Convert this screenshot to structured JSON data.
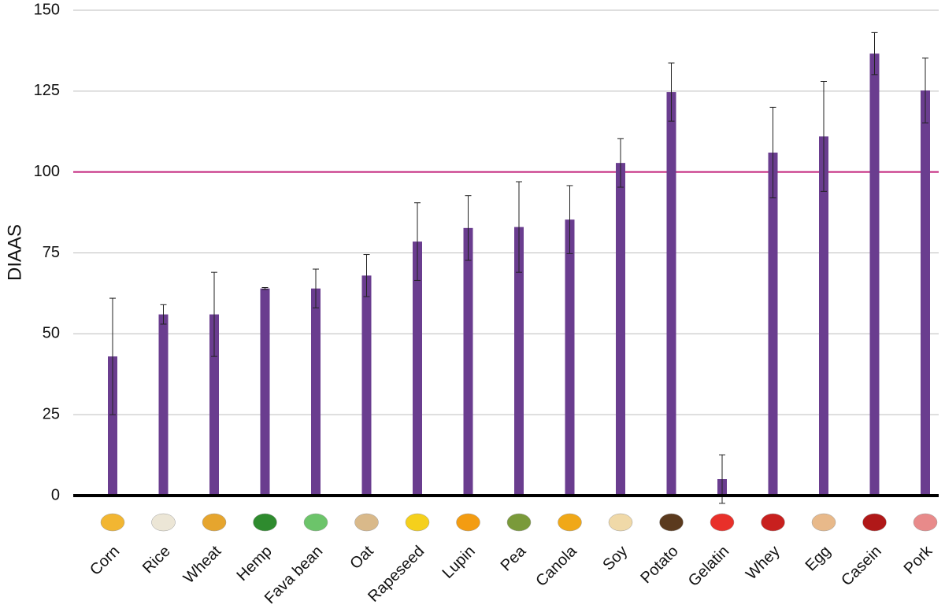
{
  "chart_data": {
    "type": "bar",
    "ylabel": "DIAAS",
    "categories": [
      "Corn",
      "Rice",
      "Wheat",
      "Hemp",
      "Fava bean",
      "Oat",
      "Rapeseed",
      "Lupin",
      "Pea",
      "Canola",
      "Soy",
      "Potato",
      "Gelatin",
      "Whey",
      "Egg",
      "Casein",
      "Pork"
    ],
    "values": [
      43,
      56,
      56,
      64,
      64,
      68,
      78.5,
      82.7,
      83,
      85.3,
      102.8,
      124.7,
      5.1,
      106,
      111,
      136.6,
      125.2
    ],
    "errors": [
      18,
      3,
      13,
      0.3,
      6,
      6.5,
      12,
      10,
      14,
      10.5,
      7.5,
      9,
      7.5,
      14,
      17,
      6.5,
      10
    ],
    "color": "#6a3d8f",
    "reference_line": {
      "value": 100,
      "color": "#c2207a"
    },
    "ylim": [
      0,
      150
    ],
    "yticks": [
      0,
      25,
      50,
      75,
      100,
      125,
      150
    ],
    "grid": true
  }
}
